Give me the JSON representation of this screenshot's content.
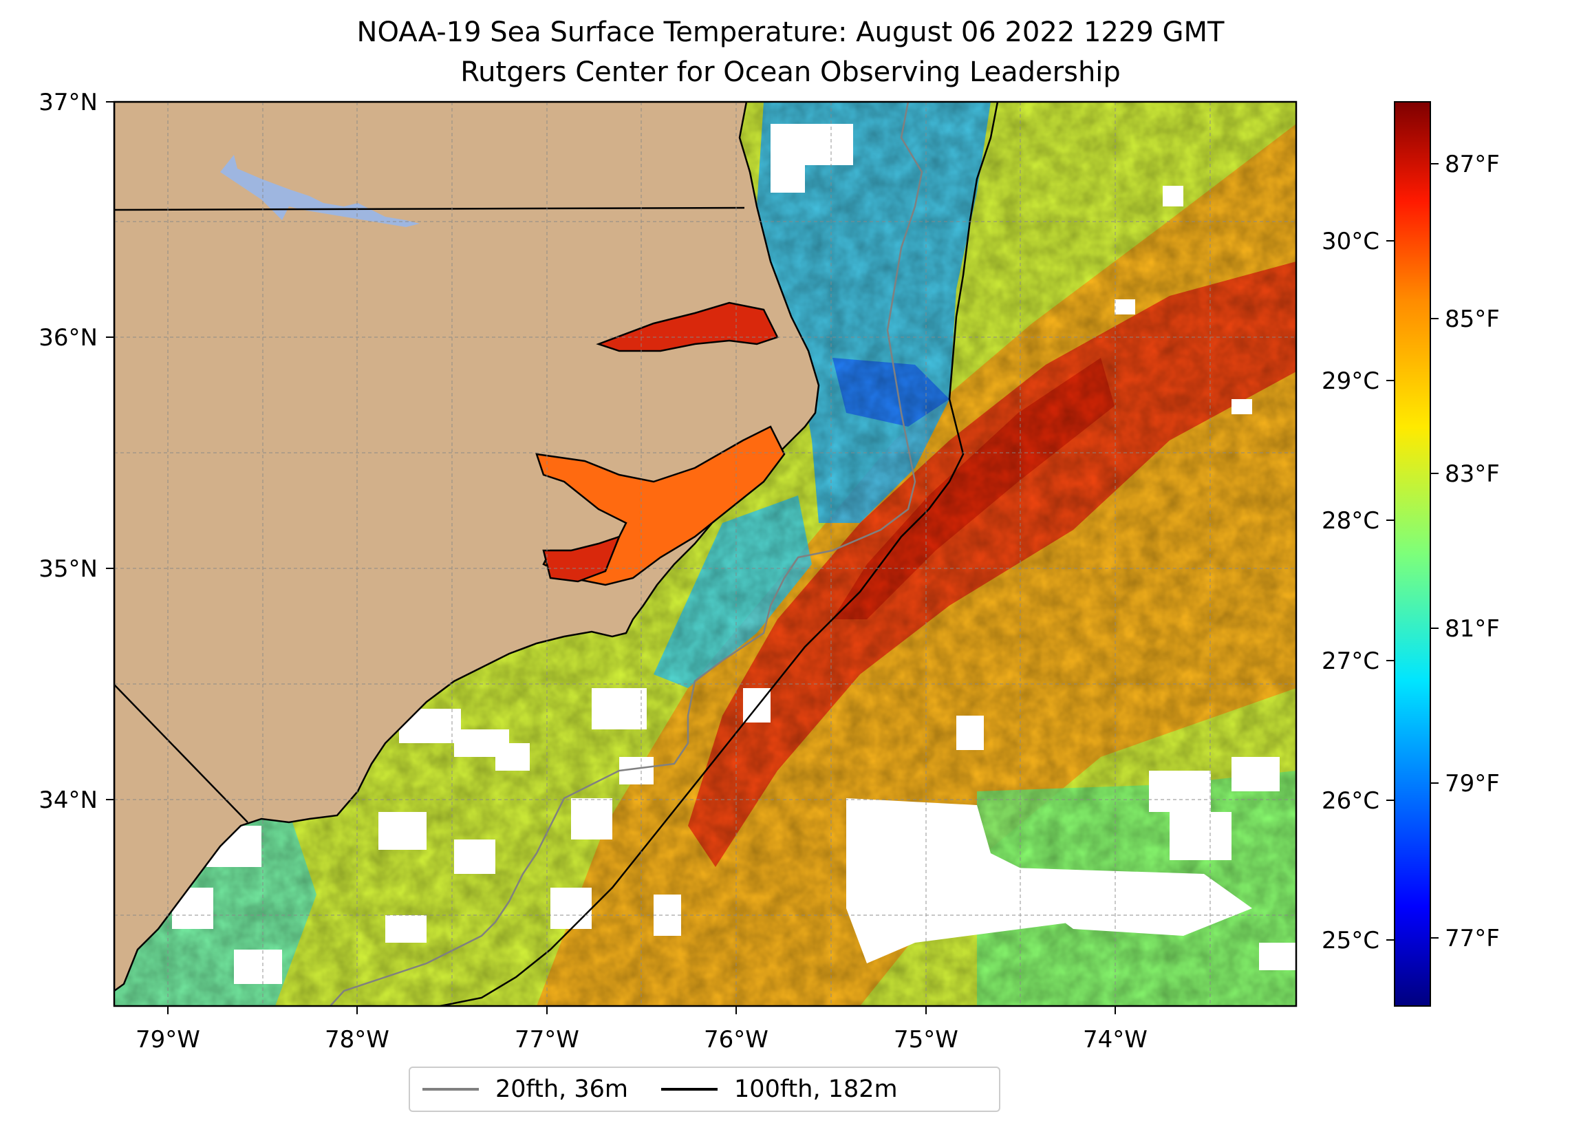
{
  "title": "NOAA-19 Sea Surface Temperature: August 06 2022 1229 GMT",
  "subtitle": "Rutgers Center for Ocean Observing Leadership",
  "map": {
    "lon_range": [
      -79.3,
      -73.08
    ],
    "lat_range": [
      33.1,
      37.0
    ],
    "x_ticks": [
      "79°W",
      "78°W",
      "77°W",
      "76°W",
      "75°W",
      "74°W"
    ],
    "y_ticks": [
      "37°N",
      "36°N",
      "35°N",
      "34°N"
    ],
    "land_color": "#d2b08a",
    "lake_color": "#9eb6e0",
    "grid": true
  },
  "colorbar": {
    "colormap": "jet",
    "celsius_ticks": [
      "30°C",
      "29°C",
      "28°C",
      "27°C",
      "26°C",
      "25°C"
    ],
    "fahrenheit_ticks": [
      "87°F",
      "85°F",
      "83°F",
      "81°F",
      "79°F",
      "77°F"
    ]
  },
  "legend": [
    {
      "label": "20fth, 36m",
      "color": "#808080"
    },
    {
      "label": "100fth, 182m",
      "color": "#000000"
    }
  ]
}
